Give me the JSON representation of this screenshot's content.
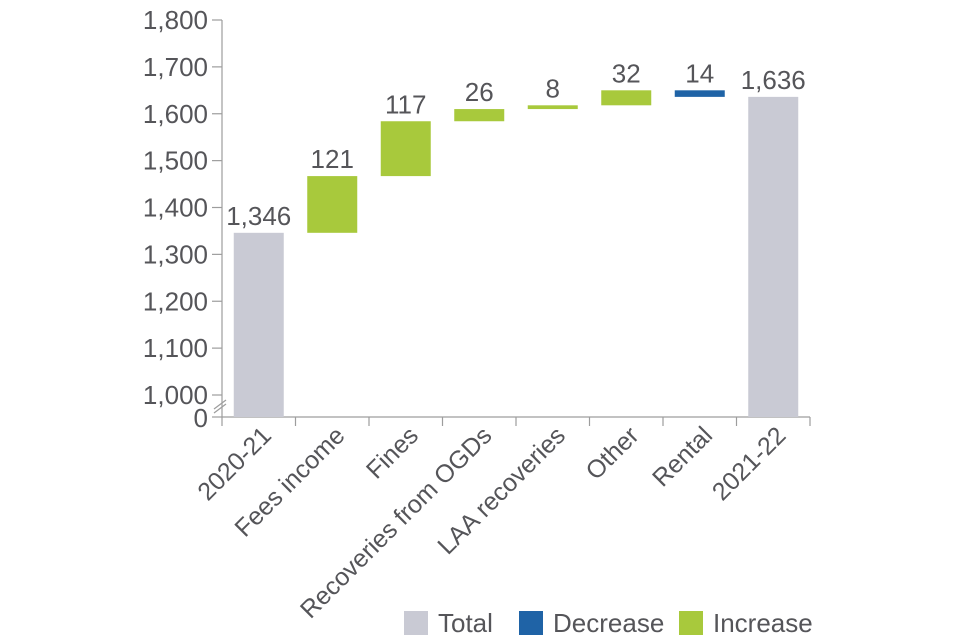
{
  "chart_data": {
    "type": "bar",
    "subtype": "waterfall",
    "categories": [
      "2020-21",
      "Fees income",
      "Fines",
      "Recoveries from OGDs",
      "LAA recoveries",
      "Other",
      "Rental",
      "2021-22"
    ],
    "steps": [
      {
        "label": "2020-21",
        "kind": "total",
        "value": 1346,
        "display": "1,346"
      },
      {
        "label": "Fees income",
        "kind": "increase",
        "value": 121,
        "display": "121"
      },
      {
        "label": "Fines",
        "kind": "increase",
        "value": 117,
        "display": "117"
      },
      {
        "label": "Recoveries from OGDs",
        "kind": "increase",
        "value": 26,
        "display": "26"
      },
      {
        "label": "LAA recoveries",
        "kind": "increase",
        "value": 8,
        "display": "8"
      },
      {
        "label": "Other",
        "kind": "increase",
        "value": 32,
        "display": "32"
      },
      {
        "label": "Rental",
        "kind": "decrease",
        "value": 14,
        "display": "14"
      },
      {
        "label": "2021-22",
        "kind": "total",
        "value": 1636,
        "display": "1,636"
      }
    ],
    "y_ticks": [
      {
        "value": 1000,
        "label": "1,000"
      },
      {
        "value": 1100,
        "label": "1,100"
      },
      {
        "value": 1200,
        "label": "1,200"
      },
      {
        "value": 1300,
        "label": "1,300"
      },
      {
        "value": 1400,
        "label": "1,400"
      },
      {
        "value": 1500,
        "label": "1,500"
      },
      {
        "value": 1600,
        "label": "1,600"
      },
      {
        "value": 1700,
        "label": "1,700"
      },
      {
        "value": 1800,
        "label": "1,800"
      }
    ],
    "y_zero_label": "0",
    "axis_break": true,
    "ylim": [
      1000,
      1800
    ],
    "title": "",
    "xlabel": "",
    "ylabel": "",
    "legend": [
      {
        "label": "Total",
        "kind": "total"
      },
      {
        "label": "Decrease",
        "kind": "decrease"
      },
      {
        "label": "Increase",
        "kind": "increase"
      }
    ],
    "legend_position": "bottom-right",
    "colors": {
      "total": "#c9cad4",
      "increase": "#a8c93c",
      "decrease": "#1f63a6",
      "axis": "#9d9d9d",
      "text": "#555559"
    }
  }
}
